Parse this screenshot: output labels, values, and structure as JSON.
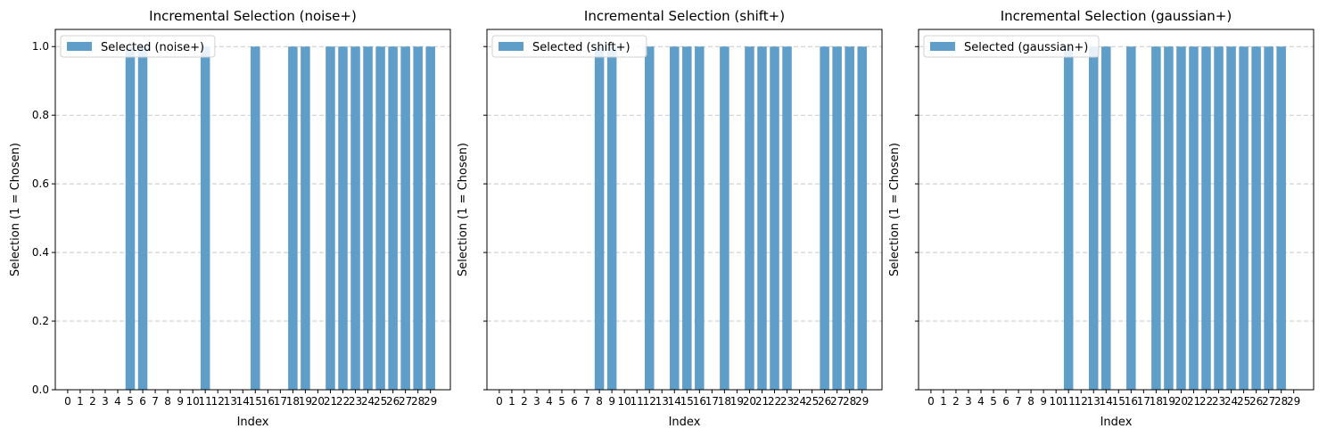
{
  "chart_data": [
    {
      "type": "bar",
      "title": "Incremental Selection (noise+)",
      "xlabel": "Index",
      "ylabel": "Selection (1 = Chosen)",
      "ylim": [
        0,
        1.05
      ],
      "yticks": [
        "0.0",
        "0.2",
        "0.4",
        "0.6",
        "0.8",
        "1.0"
      ],
      "ytick_values": [
        0,
        0.2,
        0.4,
        0.6,
        0.8,
        1.0
      ],
      "categories": [
        "0",
        "1",
        "2",
        "3",
        "4",
        "5",
        "6",
        "7",
        "8",
        "9",
        "10",
        "11",
        "12",
        "13",
        "14",
        "15",
        "16",
        "17",
        "18",
        "19",
        "20",
        "21",
        "22",
        "23",
        "24",
        "25",
        "26",
        "27",
        "28",
        "29"
      ],
      "series": [
        {
          "name": "Selected (noise+)",
          "values": [
            0,
            0,
            0,
            0,
            0,
            1,
            1,
            0,
            0,
            0,
            0,
            1,
            0,
            0,
            0,
            1,
            0,
            0,
            1,
            1,
            0,
            1,
            1,
            1,
            1,
            1,
            1,
            1,
            1,
            1
          ]
        }
      ],
      "grid": "y-dashed",
      "legend_position": "upper-left",
      "color": "#5f9ec9"
    },
    {
      "type": "bar",
      "title": "Incremental Selection (shift+)",
      "xlabel": "Index",
      "ylabel": "Selection (1 = Chosen)",
      "ylim": [
        0,
        1.05
      ],
      "yticks": [
        "0.0",
        "0.2",
        "0.4",
        "0.6",
        "0.8",
        "1.0"
      ],
      "ytick_values": [
        0,
        0.2,
        0.4,
        0.6,
        0.8,
        1.0
      ],
      "categories": [
        "0",
        "1",
        "2",
        "3",
        "4",
        "5",
        "6",
        "7",
        "8",
        "9",
        "10",
        "11",
        "12",
        "13",
        "14",
        "15",
        "16",
        "17",
        "18",
        "19",
        "20",
        "21",
        "22",
        "23",
        "24",
        "25",
        "26",
        "27",
        "28",
        "29"
      ],
      "series": [
        {
          "name": "Selected (shift+)",
          "values": [
            0,
            0,
            0,
            0,
            0,
            0,
            0,
            0,
            1,
            1,
            0,
            0,
            1,
            0,
            1,
            1,
            1,
            0,
            1,
            0,
            1,
            1,
            1,
            1,
            0,
            0,
            1,
            1,
            1,
            1
          ]
        }
      ],
      "grid": "y-dashed",
      "legend_position": "upper-left",
      "color": "#5f9ec9"
    },
    {
      "type": "bar",
      "title": "Incremental Selection (gaussian+)",
      "xlabel": "Index",
      "ylabel": "Selection (1 = Chosen)",
      "ylim": [
        0,
        1.05
      ],
      "yticks": [
        "0.0",
        "0.2",
        "0.4",
        "0.6",
        "0.8",
        "1.0"
      ],
      "ytick_values": [
        0,
        0.2,
        0.4,
        0.6,
        0.8,
        1.0
      ],
      "categories": [
        "0",
        "1",
        "2",
        "3",
        "4",
        "5",
        "6",
        "7",
        "8",
        "9",
        "10",
        "11",
        "12",
        "13",
        "14",
        "15",
        "16",
        "17",
        "18",
        "19",
        "20",
        "21",
        "22",
        "23",
        "24",
        "25",
        "26",
        "27",
        "28",
        "29"
      ],
      "series": [
        {
          "name": "Selected (gaussian+)",
          "values": [
            0,
            0,
            0,
            0,
            0,
            0,
            0,
            0,
            0,
            0,
            0,
            1,
            0,
            1,
            1,
            0,
            1,
            0,
            1,
            1,
            1,
            1,
            1,
            1,
            1,
            1,
            1,
            1,
            1,
            0
          ]
        }
      ],
      "grid": "y-dashed",
      "legend_position": "upper-left",
      "color": "#5f9ec9"
    }
  ]
}
